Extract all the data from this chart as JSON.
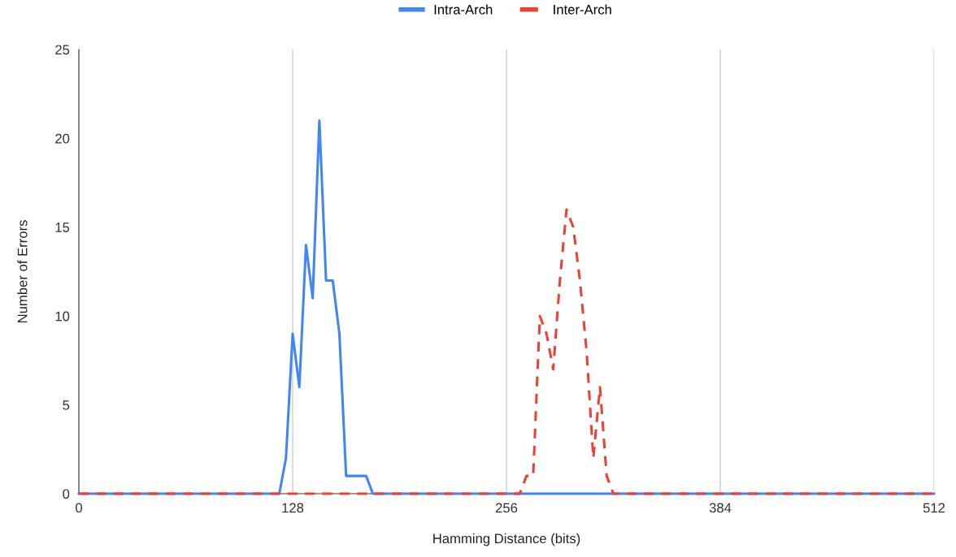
{
  "chart_data": {
    "type": "line",
    "xlabel": "Hamming Distance (bits)",
    "ylabel": "Number of Errors",
    "x": [
      0,
      4,
      8,
      12,
      16,
      20,
      24,
      28,
      32,
      36,
      40,
      44,
      48,
      52,
      56,
      60,
      64,
      68,
      72,
      76,
      80,
      84,
      88,
      92,
      96,
      100,
      104,
      108,
      112,
      116,
      120,
      124,
      128,
      132,
      136,
      140,
      144,
      148,
      152,
      156,
      160,
      164,
      168,
      172,
      176,
      180,
      184,
      188,
      192,
      196,
      200,
      204,
      208,
      212,
      216,
      220,
      224,
      228,
      232,
      236,
      240,
      244,
      248,
      252,
      256,
      260,
      264,
      268,
      272,
      276,
      280,
      284,
      288,
      292,
      296,
      300,
      304,
      308,
      312,
      316,
      320,
      324,
      328,
      332,
      336,
      340,
      344,
      348,
      352,
      356,
      360,
      364,
      368,
      372,
      376,
      380,
      384,
      388,
      392,
      396,
      400,
      404,
      408,
      412,
      416,
      420,
      424,
      428,
      432,
      436,
      440,
      444,
      448,
      452,
      456,
      460,
      464,
      468,
      472,
      476,
      480,
      484,
      488,
      492,
      496,
      500,
      504,
      508,
      512
    ],
    "series": [
      {
        "name": "Intra-Arch",
        "color": "#4285f4",
        "line_style": "solid",
        "values": [
          0,
          0,
          0,
          0,
          0,
          0,
          0,
          0,
          0,
          0,
          0,
          0,
          0,
          0,
          0,
          0,
          0,
          0,
          0,
          0,
          0,
          0,
          0,
          0,
          0,
          0,
          0,
          0,
          0,
          0,
          0,
          2,
          9,
          6,
          14,
          11,
          21,
          12,
          12,
          9,
          1,
          1,
          1,
          1,
          0,
          0,
          0,
          0,
          0,
          0,
          0,
          0,
          0,
          0,
          0,
          0,
          0,
          0,
          0,
          0,
          0,
          0,
          0,
          0,
          0,
          0,
          0,
          0,
          0,
          0,
          0,
          0,
          0,
          0,
          0,
          0,
          0,
          0,
          0,
          0,
          0,
          0,
          0,
          0,
          0,
          0,
          0,
          0,
          0,
          0,
          0,
          0,
          0,
          0,
          0,
          0,
          0,
          0,
          0,
          0,
          0,
          0,
          0,
          0,
          0,
          0,
          0,
          0,
          0,
          0,
          0,
          0,
          0,
          0,
          0,
          0,
          0,
          0,
          0,
          0,
          0,
          0,
          0,
          0,
          0,
          0,
          0,
          0,
          0
        ]
      },
      {
        "name": "Inter-Arch",
        "color": "#ea4335",
        "line_style": "dashed",
        "values": [
          0,
          0,
          0,
          0,
          0,
          0,
          0,
          0,
          0,
          0,
          0,
          0,
          0,
          0,
          0,
          0,
          0,
          0,
          0,
          0,
          0,
          0,
          0,
          0,
          0,
          0,
          0,
          0,
          0,
          0,
          0,
          0,
          0,
          0,
          0,
          0,
          0,
          0,
          0,
          0,
          0,
          0,
          0,
          0,
          0,
          0,
          0,
          0,
          0,
          0,
          0,
          0,
          0,
          0,
          0,
          0,
          0,
          0,
          0,
          0,
          0,
          0,
          0,
          0,
          0,
          0,
          0,
          1,
          1,
          10,
          9,
          7,
          12,
          16,
          15,
          12,
          8,
          2,
          6,
          1,
          0,
          0,
          0,
          0,
          0,
          0,
          0,
          0,
          0,
          0,
          0,
          0,
          0,
          0,
          0,
          0,
          0,
          0,
          0,
          0,
          0,
          0,
          0,
          0,
          0,
          0,
          0,
          0,
          0,
          0,
          0,
          0,
          0,
          0,
          0,
          0,
          0,
          0,
          0,
          0,
          0,
          0,
          0,
          0,
          0,
          0,
          0,
          0,
          0
        ]
      }
    ],
    "xlim": [
      0,
      512
    ],
    "xticks": [
      0,
      128,
      256,
      384,
      512
    ],
    "ylim": [
      0,
      25
    ],
    "yticks": [
      0,
      5,
      10,
      15,
      20,
      25
    ],
    "grid": "x",
    "legend": "top",
    "marker": "none"
  }
}
